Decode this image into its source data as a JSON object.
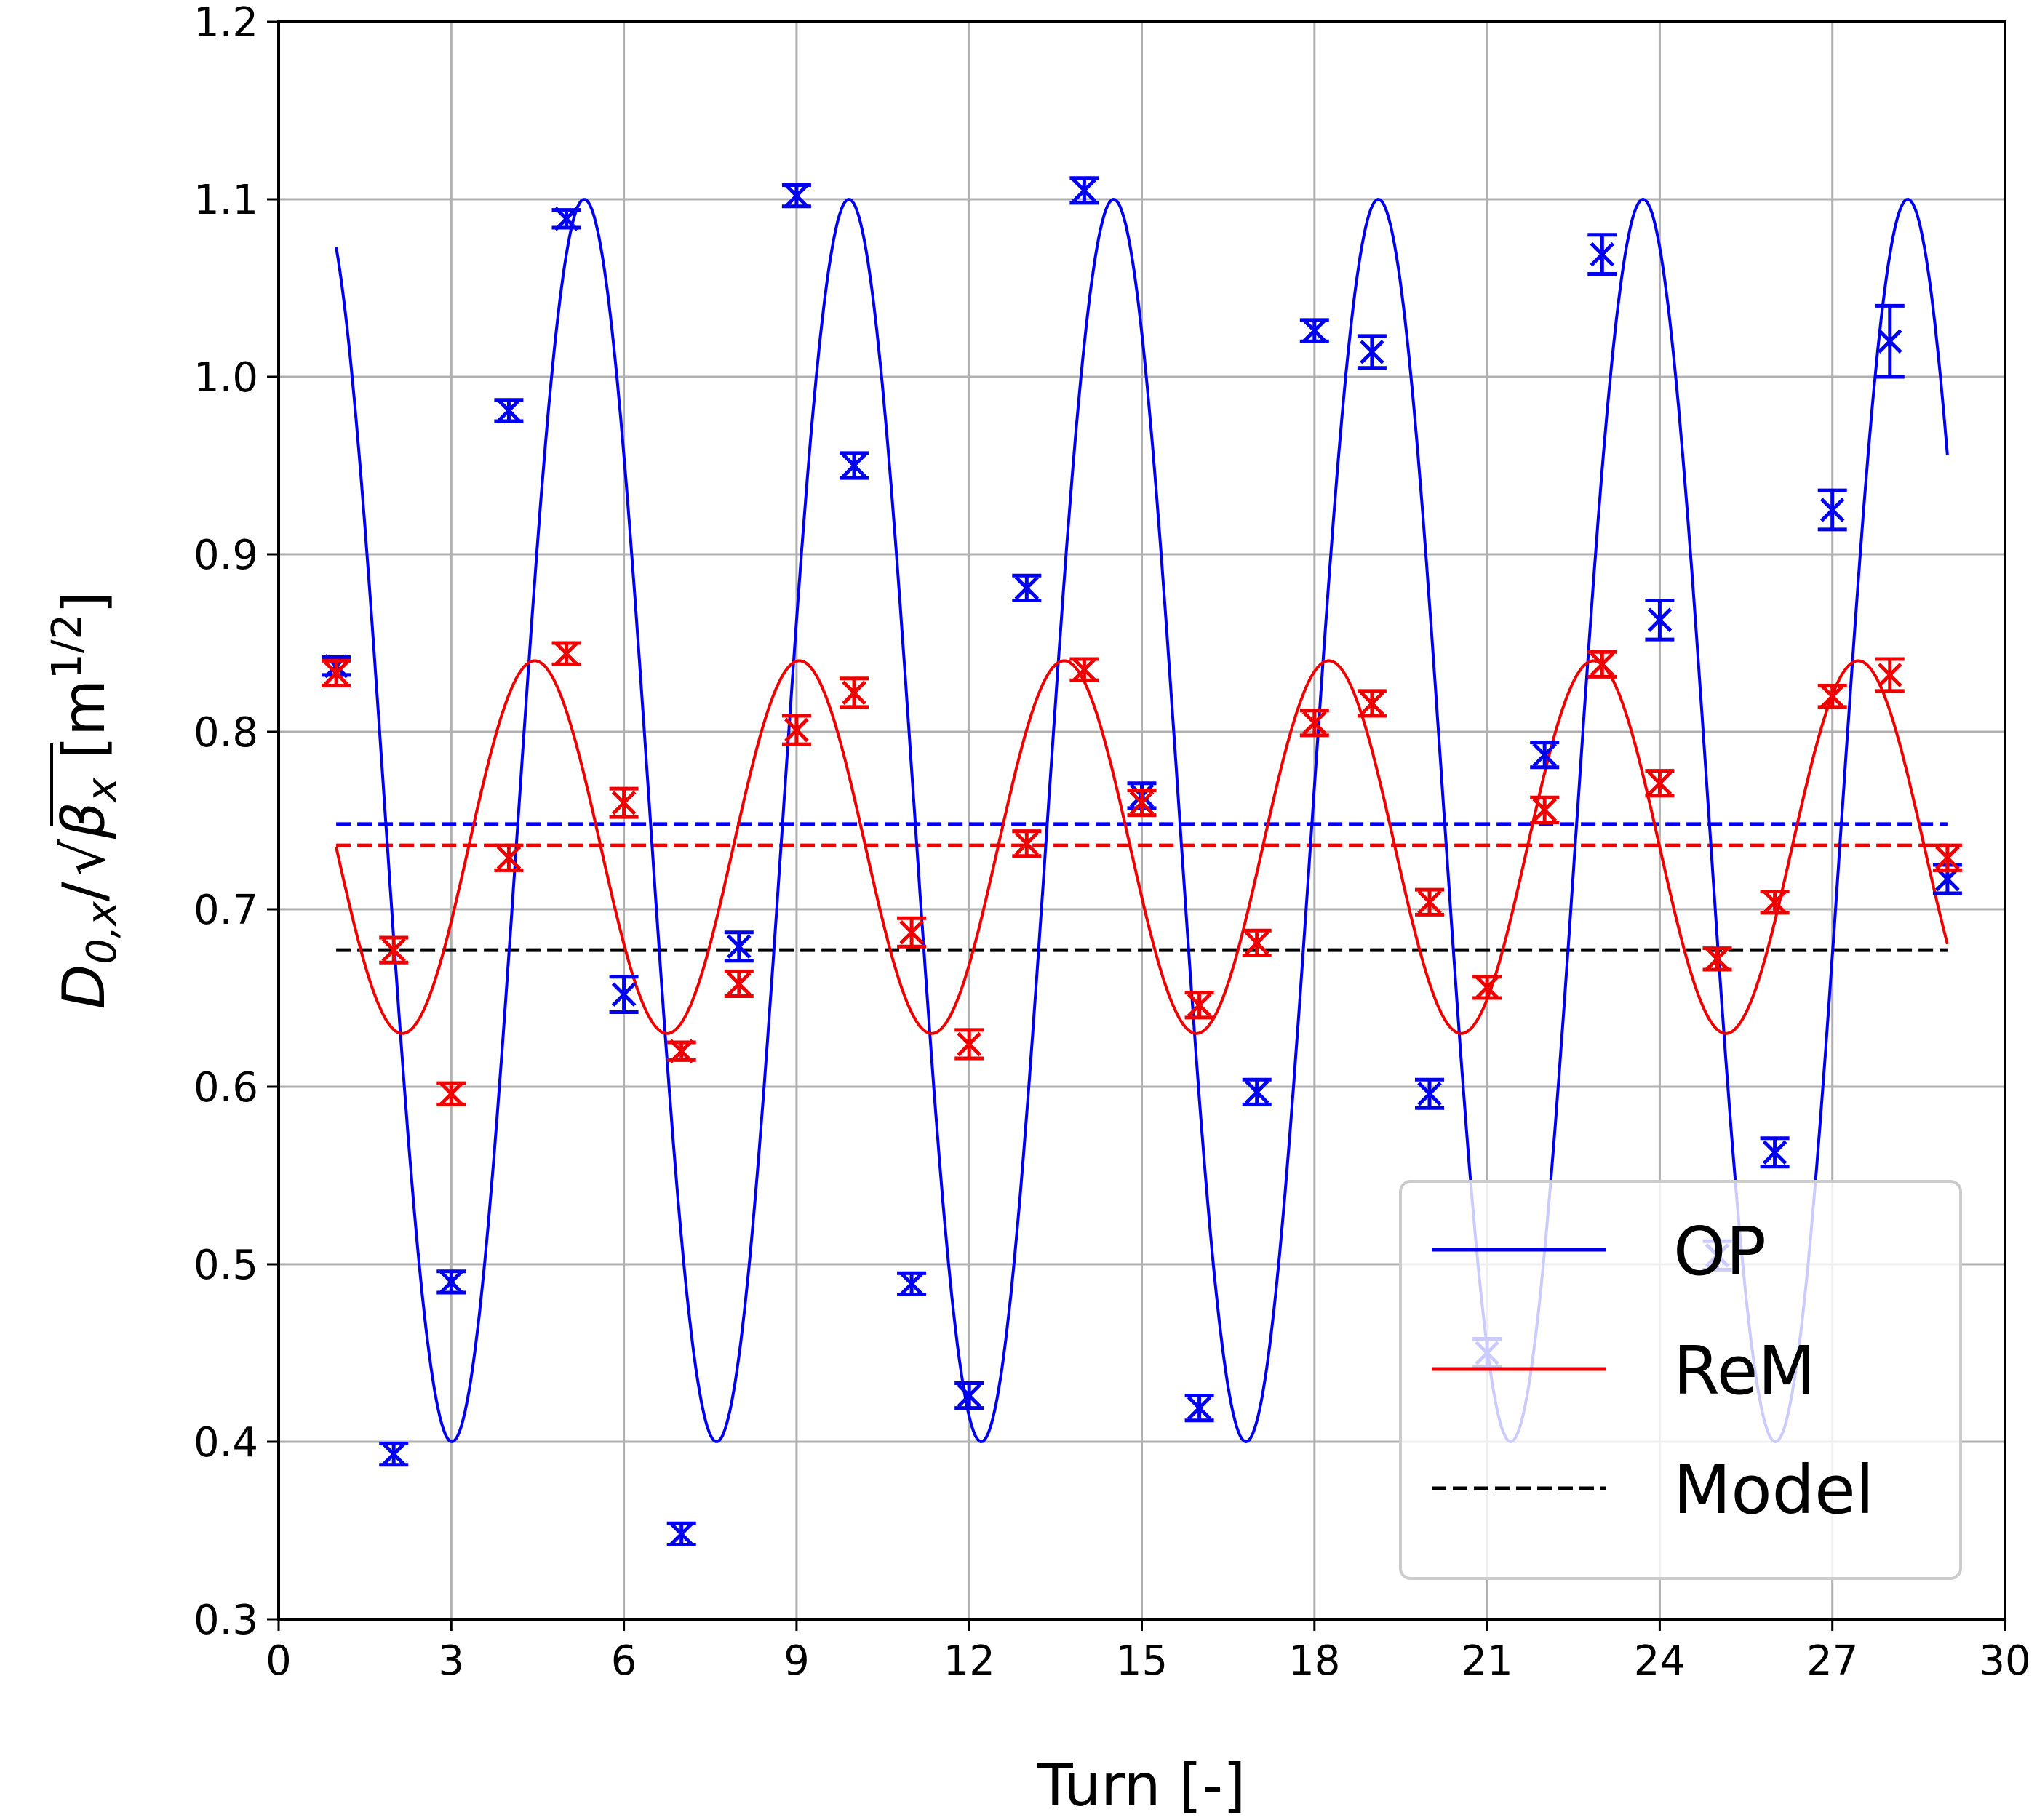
{
  "chart_data": {
    "type": "scatter",
    "title": "",
    "xlabel": "Turn [-]",
    "ylabel": {
      "base": "D",
      "sub": "0,x",
      "slash": "/",
      "rad": "β",
      "rad_sub": "x",
      "unit_open": "[m",
      "unit_sup": "1/2",
      "unit_close": "]"
    },
    "xlim": [
      0,
      30
    ],
    "ylim": [
      0.3,
      1.2
    ],
    "xticks": [
      "0",
      "3",
      "6",
      "9",
      "12",
      "15",
      "18",
      "21",
      "24",
      "27",
      "30"
    ],
    "yticks": [
      "0.3",
      "0.4",
      "0.5",
      "0.6",
      "0.7",
      "0.8",
      "0.9",
      "1.0",
      "1.1",
      "1.2"
    ],
    "grid": true,
    "legend_position": "bottom-right",
    "colors": {
      "OP": "#0000ee",
      "ReM": "#ee0000",
      "Model": "#000000"
    },
    "legend": [
      {
        "label": "OP",
        "style": "solid",
        "color": "#0000ee"
      },
      {
        "label": "ReM",
        "style": "solid",
        "color": "#ee0000"
      },
      {
        "label": "Model",
        "style": "dashed",
        "color": "#000000"
      }
    ],
    "series": [
      {
        "name": "OP",
        "kind": "measurements",
        "marker": "x",
        "color": "#0000ee",
        "x": [
          1,
          2,
          3,
          4,
          5,
          6,
          7,
          8,
          9,
          10,
          11,
          12,
          13,
          14,
          15,
          16,
          17,
          18,
          19,
          20,
          21,
          22,
          23,
          24,
          25,
          26,
          27,
          28,
          29
        ],
        "y": [
          0.837,
          0.393,
          0.49,
          0.981,
          1.089,
          0.652,
          0.348,
          0.679,
          1.102,
          0.95,
          0.489,
          0.426,
          0.881,
          1.105,
          0.764,
          0.419,
          0.597,
          1.026,
          1.014,
          0.596,
          0.45,
          0.787,
          1.069,
          0.863,
          0.505,
          0.563,
          0.925,
          1.02,
          0.717
        ],
        "err": [
          0.005,
          0.006,
          0.006,
          0.006,
          0.005,
          0.01,
          0.006,
          0.008,
          0.006,
          0.007,
          0.006,
          0.007,
          0.007,
          0.007,
          0.007,
          0.007,
          0.007,
          0.006,
          0.009,
          0.008,
          0.008,
          0.007,
          0.011,
          0.011,
          0.008,
          0.008,
          0.011,
          0.02,
          0.008
        ]
      },
      {
        "name": "ReM",
        "kind": "measurements",
        "marker": "x",
        "color": "#ee0000",
        "x": [
          1,
          2,
          3,
          4,
          5,
          6,
          7,
          8,
          9,
          10,
          11,
          12,
          13,
          14,
          15,
          16,
          17,
          18,
          19,
          20,
          21,
          22,
          23,
          24,
          25,
          26,
          27,
          28,
          29
        ],
        "y": [
          0.833,
          0.677,
          0.596,
          0.729,
          0.844,
          0.76,
          0.62,
          0.658,
          0.801,
          0.822,
          0.687,
          0.624,
          0.737,
          0.835,
          0.76,
          0.646,
          0.681,
          0.805,
          0.816,
          0.704,
          0.656,
          0.756,
          0.838,
          0.771,
          0.672,
          0.704,
          0.82,
          0.832,
          0.729
        ],
        "err": [
          0.007,
          0.007,
          0.006,
          0.007,
          0.006,
          0.008,
          0.005,
          0.007,
          0.008,
          0.008,
          0.008,
          0.008,
          0.007,
          0.006,
          0.007,
          0.007,
          0.007,
          0.007,
          0.007,
          0.007,
          0.006,
          0.007,
          0.007,
          0.007,
          0.006,
          0.006,
          0.006,
          0.009,
          0.007
        ]
      },
      {
        "name": "OP",
        "kind": "fit",
        "color": "#0000ee",
        "x_range": [
          1,
          29
        ],
        "offset": 0.75,
        "amplitude": 0.35,
        "period": 4.6,
        "phase_turn": 0.063
      },
      {
        "name": "ReM",
        "kind": "fit",
        "color": "#ee0000",
        "x_range": [
          1,
          29
        ],
        "offset": 0.735,
        "amplitude": 0.105,
        "period": 4.6,
        "phase_turn": 0.25
      },
      {
        "name": "OP",
        "kind": "mean",
        "color": "#0000ee",
        "y": 0.748,
        "x_range": [
          1,
          29
        ]
      },
      {
        "name": "ReM",
        "kind": "mean",
        "color": "#ee0000",
        "y": 0.736,
        "x_range": [
          1,
          29
        ]
      },
      {
        "name": "Model",
        "kind": "mean",
        "color": "#000000",
        "y": 0.677,
        "x_range": [
          1,
          29
        ]
      }
    ]
  }
}
